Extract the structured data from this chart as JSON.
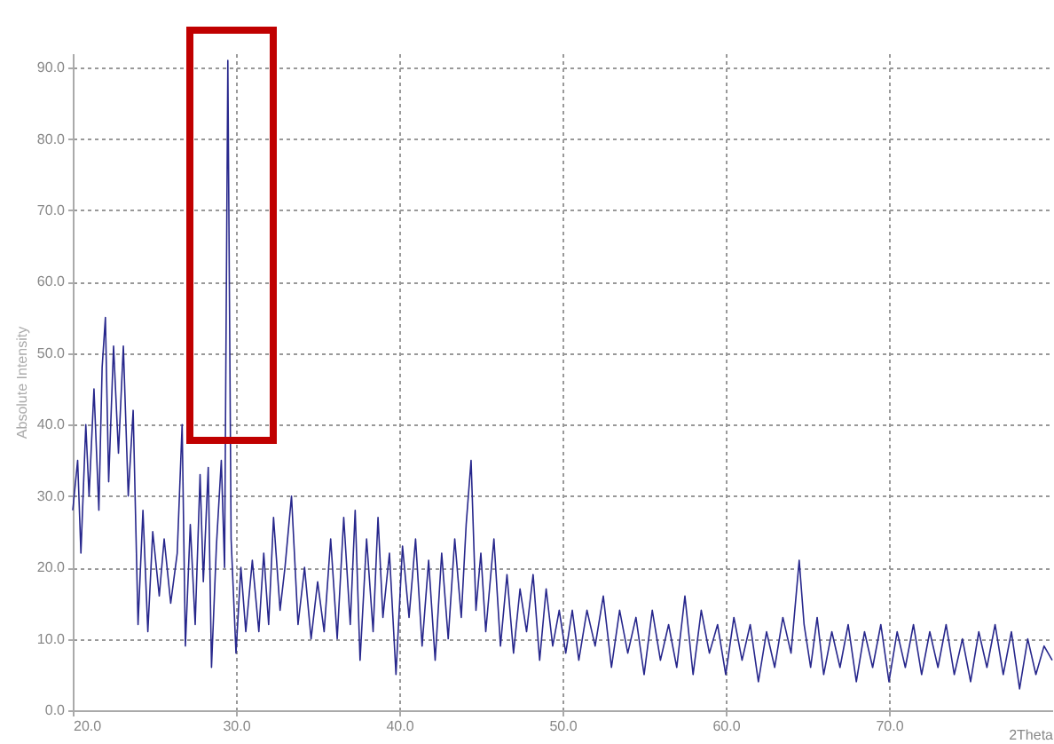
{
  "chart_data": {
    "type": "line",
    "xlabel": "2Theta",
    "ylabel": "Absolute Intensity",
    "xlim": [
      20,
      80
    ],
    "xticks": [
      {
        "value": 20,
        "label": "20.0"
      },
      {
        "value": 30,
        "label": "30.0"
      },
      {
        "value": 40,
        "label": "40.0"
      },
      {
        "value": 50,
        "label": "50.0"
      },
      {
        "value": 60,
        "label": "60.0"
      },
      {
        "value": 70,
        "label": "70.0"
      }
    ],
    "ylim": [
      0,
      92
    ],
    "yticks": [
      {
        "value": 0,
        "label": "0.0"
      },
      {
        "value": 10,
        "label": "10.0"
      },
      {
        "value": 20,
        "label": "20.0"
      },
      {
        "value": 30,
        "label": "30.0"
      },
      {
        "value": 40,
        "label": "40.0"
      },
      {
        "value": 50,
        "label": "50.0"
      },
      {
        "value": 60,
        "label": "60.0"
      },
      {
        "value": 70,
        "label": "70.0"
      },
      {
        "value": 80,
        "label": "80.0"
      },
      {
        "value": 90,
        "label": "90.0"
      }
    ],
    "grid": true,
    "line_style": "solid",
    "marker": "none",
    "x": [
      20.0,
      20.3,
      20.5,
      20.8,
      21.0,
      21.3,
      21.6,
      21.8,
      22.0,
      22.2,
      22.5,
      22.8,
      23.1,
      23.4,
      23.7,
      24.0,
      24.3,
      24.6,
      24.9,
      25.3,
      25.6,
      26.0,
      26.4,
      26.7,
      26.9,
      27.2,
      27.5,
      27.8,
      28.0,
      28.3,
      28.5,
      28.8,
      29.1,
      29.3,
      29.5,
      29.7,
      30.0,
      30.3,
      30.6,
      31.0,
      31.4,
      31.7,
      32.0,
      32.3,
      32.7,
      33.0,
      33.4,
      33.8,
      34.2,
      34.6,
      35.0,
      35.4,
      35.8,
      36.2,
      36.6,
      37.0,
      37.3,
      37.6,
      38.0,
      38.4,
      38.7,
      39.0,
      39.4,
      39.8,
      40.2,
      40.6,
      41.0,
      41.4,
      41.8,
      42.2,
      42.6,
      43.0,
      43.4,
      43.8,
      44.1,
      44.4,
      44.7,
      45.0,
      45.3,
      45.8,
      46.2,
      46.6,
      47.0,
      47.4,
      47.8,
      48.2,
      48.6,
      49.0,
      49.4,
      49.8,
      50.2,
      50.6,
      51.0,
      51.5,
      52.0,
      52.5,
      53.0,
      53.5,
      54.0,
      54.5,
      55.0,
      55.5,
      56.0,
      56.5,
      57.0,
      57.5,
      58.0,
      58.5,
      59.0,
      59.5,
      60.0,
      60.5,
      61.0,
      61.5,
      62.0,
      62.5,
      63.0,
      63.5,
      64.0,
      64.5,
      64.8,
      65.2,
      65.6,
      66.0,
      66.5,
      67.0,
      67.5,
      68.0,
      68.5,
      69.0,
      69.5,
      70.0,
      70.5,
      71.0,
      71.5,
      72.0,
      72.5,
      73.0,
      73.5,
      74.0,
      74.5,
      75.0,
      75.5,
      76.0,
      76.5,
      77.0,
      77.5,
      78.0,
      78.5,
      79.0,
      79.5,
      80.0
    ],
    "series": [
      {
        "color": "#27278c",
        "values": [
          28,
          35,
          22,
          40,
          30,
          45,
          28,
          48,
          55,
          32,
          51,
          36,
          51,
          30,
          42,
          12,
          28,
          11,
          25,
          16,
          24,
          15,
          22,
          40,
          9,
          26,
          12,
          33,
          18,
          34,
          6,
          23,
          35,
          20,
          91,
          24,
          8,
          20,
          11,
          21,
          11,
          22,
          12,
          27,
          14,
          20,
          30,
          12,
          20,
          10,
          18,
          11,
          24,
          10,
          27,
          12,
          28,
          7,
          24,
          11,
          27,
          13,
          22,
          5,
          23,
          13,
          24,
          9,
          21,
          7,
          22,
          10,
          24,
          13,
          26,
          35,
          14,
          22,
          11,
          24,
          9,
          19,
          8,
          17,
          11,
          19,
          7,
          17,
          9,
          14,
          8,
          14,
          7,
          14,
          9,
          16,
          6,
          14,
          8,
          13,
          5,
          14,
          7,
          12,
          6,
          16,
          5,
          14,
          8,
          12,
          5,
          13,
          7,
          12,
          4,
          11,
          6,
          13,
          8,
          21,
          12,
          6,
          13,
          5,
          11,
          6,
          12,
          4,
          11,
          6,
          12,
          4,
          11,
          6,
          12,
          5,
          11,
          6,
          12,
          5,
          10,
          4,
          11,
          6,
          12,
          5,
          11,
          3,
          10,
          5,
          9,
          7
        ]
      }
    ]
  }
}
